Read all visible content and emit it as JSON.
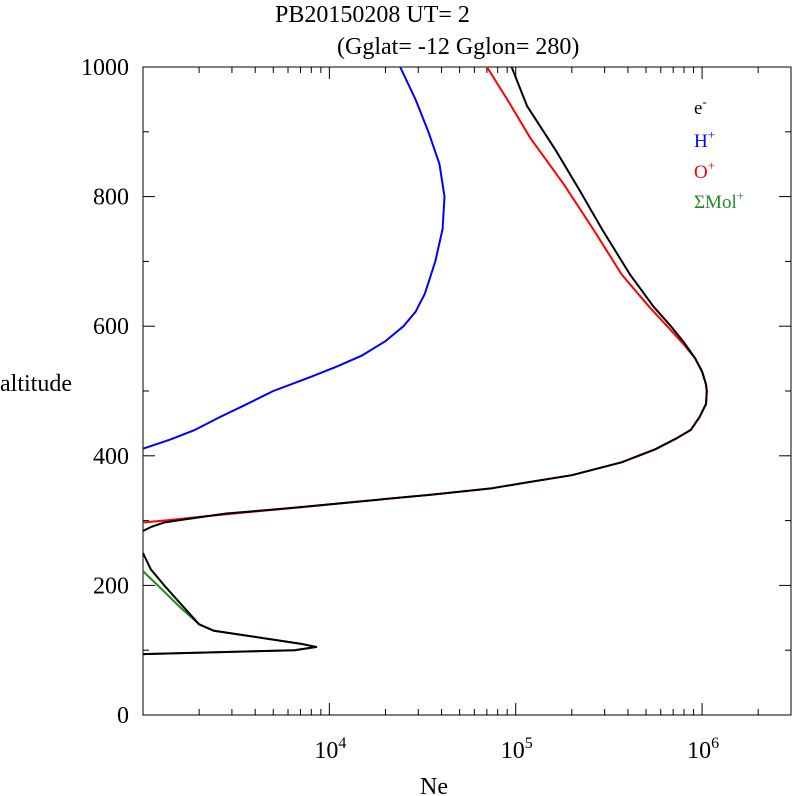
{
  "chart_data": {
    "type": "line",
    "title_line1": "PB20150208   UT=  2",
    "title_line2": "(Gglat= -12   Gglon=  280)",
    "xlabel": "Ne",
    "ylabel": "altitude",
    "x_scale": "log",
    "xlim": [
      1000,
      3000000
    ],
    "ylim": [
      0,
      1000
    ],
    "x_tick_labels": [
      {
        "base": "10",
        "exp": "4",
        "value": 10000
      },
      {
        "base": "10",
        "exp": "5",
        "value": 100000
      },
      {
        "base": "10",
        "exp": "6",
        "value": 1000000
      }
    ],
    "y_tick_labels": [
      "0",
      "200",
      "400",
      "600",
      "800",
      "1000"
    ],
    "y_ticks": [
      0,
      200,
      400,
      600,
      800,
      1000
    ],
    "legend_placement": "top-right",
    "series": [
      {
        "name": "e-",
        "legend_base": "e",
        "legend_sup": "-",
        "color": "#000000",
        "points": [
          [
            1000,
            94
          ],
          [
            6500,
            100
          ],
          [
            8500,
            105
          ],
          [
            7000,
            110
          ],
          [
            2400,
            130
          ],
          [
            2000,
            140
          ],
          [
            1300,
            200
          ],
          [
            1100,
            225
          ],
          [
            1000,
            250
          ],
          null,
          [
            1000,
            284
          ],
          [
            1100,
            290
          ],
          [
            1300,
            297
          ],
          [
            1700,
            302
          ],
          [
            2800,
            311
          ],
          [
            6000,
            319
          ],
          [
            15000,
            330
          ],
          [
            35000,
            340
          ],
          [
            75000,
            350
          ],
          [
            110000,
            358
          ],
          [
            200000,
            370
          ],
          [
            370000,
            390
          ],
          [
            560000,
            410
          ],
          [
            730000,
            427
          ],
          [
            870000,
            440
          ],
          [
            970000,
            460
          ],
          [
            1050000,
            480
          ],
          [
            1060000,
            500
          ],
          [
            1050000,
            510
          ],
          [
            1000000,
            530
          ],
          [
            920000,
            550
          ],
          [
            800000,
            575
          ],
          [
            680000,
            600
          ],
          [
            550000,
            630
          ],
          [
            410000,
            680
          ],
          [
            290000,
            750
          ],
          [
            220000,
            810
          ],
          [
            165000,
            870
          ],
          [
            115000,
            940
          ],
          [
            95000,
            1000
          ]
        ]
      },
      {
        "name": "H+",
        "legend_base": "H",
        "legend_sup": "+",
        "color": "#0000ff",
        "points": [
          [
            1000,
            411
          ],
          [
            1400,
            425
          ],
          [
            1900,
            440
          ],
          [
            2600,
            460
          ],
          [
            3500,
            478
          ],
          [
            5000,
            500
          ],
          [
            8000,
            522
          ],
          [
            11000,
            538
          ],
          [
            15000,
            555
          ],
          [
            20000,
            577
          ],
          [
            25000,
            600
          ],
          [
            29000,
            622
          ],
          [
            32500,
            650
          ],
          [
            37000,
            700
          ],
          [
            40500,
            750
          ],
          [
            41500,
            800
          ],
          [
            39000,
            850
          ],
          [
            34000,
            900
          ],
          [
            29000,
            950
          ],
          [
            24000,
            1000
          ]
        ]
      },
      {
        "name": "O+",
        "legend_base": "O",
        "legend_sup": "+",
        "color": "#ff0000",
        "points": [
          [
            1000,
            297
          ],
          [
            1400,
            301
          ],
          [
            2200,
            307
          ],
          [
            4000,
            314
          ],
          [
            8000,
            322
          ],
          [
            15000,
            330
          ],
          [
            35000,
            340
          ],
          [
            75000,
            350
          ],
          [
            110000,
            358
          ],
          [
            200000,
            370
          ],
          [
            370000,
            390
          ],
          [
            560000,
            410
          ],
          [
            730000,
            427
          ],
          [
            870000,
            440
          ],
          [
            970000,
            460
          ],
          [
            1050000,
            480
          ],
          [
            1060000,
            500
          ],
          [
            1050000,
            510
          ],
          [
            1000000,
            530
          ],
          [
            920000,
            550
          ],
          [
            780000,
            575
          ],
          [
            650000,
            600
          ],
          [
            520000,
            630
          ],
          [
            370000,
            680
          ],
          [
            260000,
            750
          ],
          [
            180000,
            820
          ],
          [
            120000,
            890
          ],
          [
            90000,
            950
          ],
          [
            70000,
            1000
          ]
        ]
      },
      {
        "name": "ΣMol+",
        "legend_base": "ΣMol",
        "legend_sup": "+",
        "color": "#228b22",
        "points": [
          [
            1000,
            94
          ],
          [
            6500,
            100
          ],
          [
            8500,
            105
          ],
          [
            7000,
            110
          ],
          [
            2400,
            130
          ],
          [
            2000,
            140
          ],
          [
            1600,
            165
          ],
          [
            1200,
            200
          ],
          [
            1000,
            222
          ]
        ]
      }
    ]
  }
}
